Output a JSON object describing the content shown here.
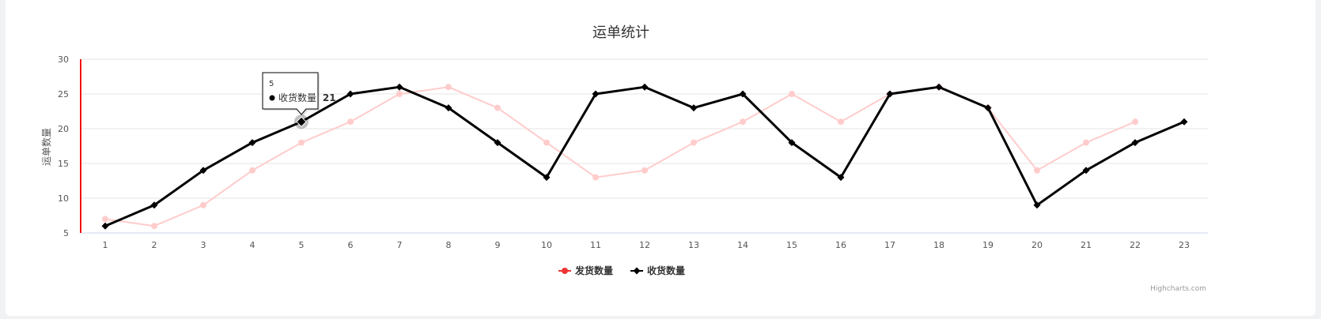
{
  "chart_data": {
    "type": "line",
    "title": "运单统计",
    "ylabel": "运单数量",
    "xlabel": "",
    "ylim": [
      5,
      30
    ],
    "yticks": [
      5,
      10,
      15,
      20,
      25,
      30
    ],
    "categories": [
      "1",
      "2",
      "3",
      "4",
      "5",
      "6",
      "7",
      "8",
      "9",
      "10",
      "11",
      "12",
      "13",
      "14",
      "15",
      "16",
      "17",
      "18",
      "19",
      "20",
      "21",
      "22",
      "23"
    ],
    "grid": true,
    "legend_position": "bottom-center",
    "series": [
      {
        "name": "发货数量",
        "color": "#ffcccc",
        "legend_color": "#ee3333",
        "marker": "circle",
        "values": [
          7,
          6,
          9,
          14,
          18,
          21,
          25,
          26,
          23,
          18,
          13,
          14,
          18,
          21,
          25,
          21,
          25,
          26,
          23,
          14,
          18,
          21,
          null
        ]
      },
      {
        "name": "收货数量",
        "color": "#000000",
        "legend_color": "#000000",
        "marker": "diamond",
        "values": [
          6,
          9,
          14,
          18,
          21,
          25,
          26,
          23,
          18,
          13,
          25,
          26,
          23,
          25,
          18,
          13,
          25,
          26,
          23,
          9,
          14,
          18,
          21
        ]
      }
    ],
    "tooltip": {
      "series_index": 1,
      "point_index": 4,
      "header": "5",
      "label": "收货数量",
      "value": "21"
    },
    "credits": "Highcharts.com"
  }
}
